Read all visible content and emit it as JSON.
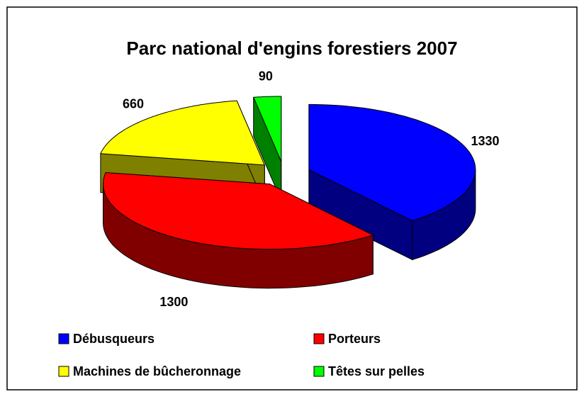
{
  "chart_data": {
    "type": "pie",
    "title": "Parc national d'engins forestiers 2007",
    "categories": [
      "Débusqueurs",
      "Porteurs",
      "Machines de bûcheronnage",
      "Têtes sur pelles"
    ],
    "values": [
      1330,
      1300,
      660,
      90
    ],
    "colors": [
      "#0000ff",
      "#ff0000",
      "#ffff00",
      "#00ff00"
    ],
    "legend": "bottom"
  }
}
